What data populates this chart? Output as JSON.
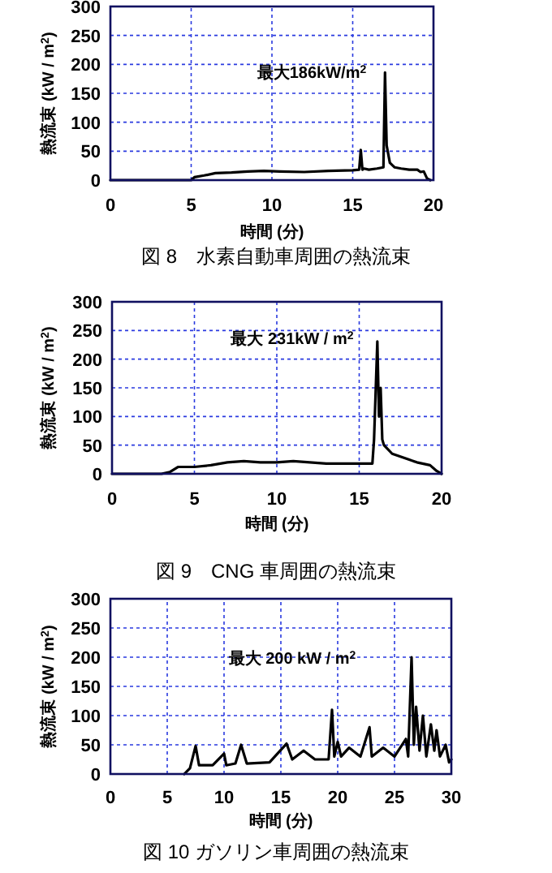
{
  "chart_data": [
    {
      "type": "line",
      "title": "図 8　水素自動車周囲の熱流束",
      "xlabel": "時間 (分)",
      "ylabel": "熱流束 (kW / m$^{2}$)",
      "annotations": [
        "最大186kW/m$^{2}$"
      ],
      "xlim": [
        0,
        20
      ],
      "ylim": [
        0,
        300
      ],
      "xticks": [
        0,
        5,
        10,
        15,
        20
      ],
      "yticks": [
        0,
        50,
        100,
        150,
        200,
        250,
        300
      ],
      "grid": true,
      "series": [
        {
          "color": "#000000",
          "x": [
            0,
            5,
            5.2,
            5.8,
            6.5,
            7.5,
            8.5,
            9.5,
            10.5,
            12,
            13.5,
            15,
            15.4,
            15.5,
            15.6,
            15.7,
            16,
            16.5,
            16.9,
            17.0,
            17.1,
            17.3,
            17.6,
            18,
            18.5,
            19,
            19.2,
            19.4,
            19.6,
            19.8
          ],
          "values": [
            0,
            0,
            5,
            8,
            12,
            13,
            15,
            16,
            15,
            14,
            16,
            17,
            18,
            52,
            18,
            20,
            18,
            20,
            22,
            186,
            60,
            30,
            22,
            20,
            18,
            18,
            14,
            15,
            3,
            0
          ]
        }
      ]
    },
    {
      "type": "line",
      "title": "図 9　CNG 車周囲の熱流束",
      "xlabel": "時間 (分)",
      "ylabel": "熱流束 (kW / m$^{2}$)",
      "annotations": [
        "最大 231kW / m$^{2}$"
      ],
      "xlim": [
        0,
        20
      ],
      "ylim": [
        0,
        300
      ],
      "xticks": [
        0,
        5,
        10,
        15,
        20
      ],
      "yticks": [
        0,
        50,
        100,
        150,
        200,
        250,
        300
      ],
      "grid": true,
      "series": [
        {
          "color": "#000000",
          "x": [
            0,
            3,
            3.5,
            4,
            5,
            6,
            7,
            8,
            9,
            10,
            11,
            12,
            13,
            14,
            15,
            15.8,
            15.9,
            16.1,
            16.2,
            16.3,
            16.4,
            16.5,
            17,
            18,
            18.5,
            19.3,
            19.7,
            20
          ],
          "values": [
            0,
            0,
            3,
            12,
            12,
            15,
            20,
            22,
            20,
            20,
            22,
            20,
            18,
            18,
            18,
            18,
            60,
            231,
            100,
            150,
            60,
            50,
            35,
            25,
            20,
            15,
            5,
            0
          ]
        }
      ]
    },
    {
      "type": "line",
      "title": "図 10  ガソリン車周囲の熱流束",
      "xlabel": "時間 (分)",
      "ylabel": "熱流束 (kW / m$^{2}$)",
      "annotations": [
        "最大 200 kW / m$^{2}$"
      ],
      "xlim": [
        0,
        30
      ],
      "ylim": [
        0,
        300
      ],
      "xticks": [
        0,
        5,
        10,
        15,
        20,
        25,
        30
      ],
      "yticks": [
        0,
        50,
        100,
        150,
        200,
        250,
        300
      ],
      "grid": true,
      "series": [
        {
          "color": "#000000",
          "x": [
            6.5,
            7,
            7.5,
            7.8,
            9,
            10,
            10.2,
            11,
            11.5,
            12,
            14,
            15.5,
            16,
            17,
            18,
            19.2,
            19.5,
            19.7,
            20,
            20.3,
            21,
            22,
            22.8,
            23,
            24,
            25,
            26,
            26.2,
            26.5,
            26.7,
            26.9,
            27.2,
            27.5,
            27.8,
            28.2,
            28.5,
            28.7,
            29,
            29.5,
            29.8,
            30
          ],
          "values": [
            0,
            10,
            48,
            15,
            15,
            35,
            15,
            18,
            50,
            18,
            20,
            52,
            25,
            40,
            25,
            25,
            110,
            30,
            55,
            30,
            45,
            30,
            80,
            30,
            45,
            30,
            60,
            30,
            200,
            50,
            115,
            40,
            100,
            30,
            85,
            40,
            75,
            30,
            50,
            20,
            25
          ]
        }
      ]
    }
  ]
}
